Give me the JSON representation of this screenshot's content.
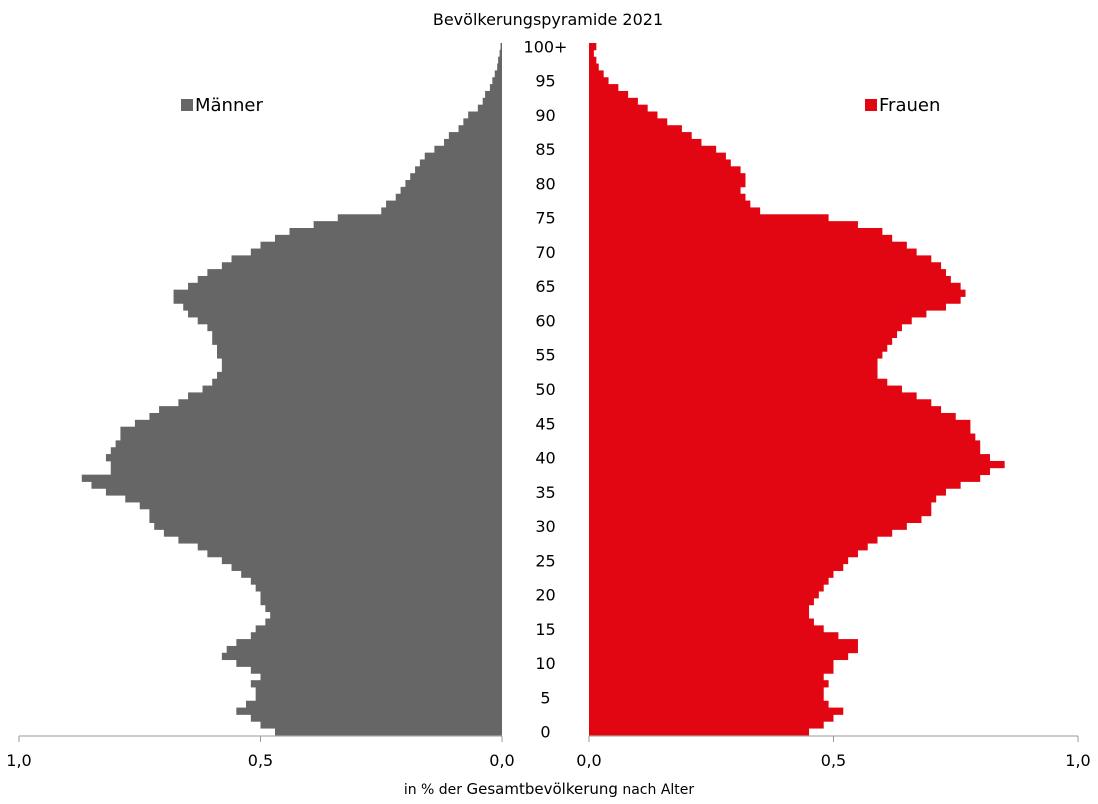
{
  "chart_data": {
    "type": "bar",
    "orientation": "horizontal-population-pyramid",
    "title": "Bevölkerungspyramide 2021",
    "xlim": [
      0,
      1.0
    ],
    "x_ticks": [
      "1,0",
      "0,5",
      "0,0",
      "0,0",
      "0,5",
      "1,0"
    ],
    "age_tick_labels": [
      "0",
      "5",
      "10",
      "15",
      "20",
      "25",
      "30",
      "35",
      "40",
      "45",
      "50",
      "55",
      "60",
      "65",
      "70",
      "75",
      "80",
      "85",
      "90",
      "95",
      "100+"
    ],
    "ages": [
      0,
      1,
      2,
      3,
      4,
      5,
      6,
      7,
      8,
      9,
      10,
      11,
      12,
      13,
      14,
      15,
      16,
      17,
      18,
      19,
      20,
      21,
      22,
      23,
      24,
      25,
      26,
      27,
      28,
      29,
      30,
      31,
      32,
      33,
      34,
      35,
      36,
      37,
      38,
      39,
      40,
      41,
      42,
      43,
      44,
      45,
      46,
      47,
      48,
      49,
      50,
      51,
      52,
      53,
      54,
      55,
      56,
      57,
      58,
      59,
      60,
      61,
      62,
      63,
      64,
      65,
      66,
      67,
      68,
      69,
      70,
      71,
      72,
      73,
      74,
      75,
      76,
      77,
      78,
      79,
      80,
      81,
      82,
      83,
      84,
      85,
      86,
      87,
      88,
      89,
      90,
      91,
      92,
      93,
      94,
      95,
      96,
      97,
      98,
      99,
      100
    ],
    "series": [
      {
        "name": "Männer",
        "color": "#666666",
        "side": "left",
        "values": [
          0.47,
          0.5,
          0.52,
          0.55,
          0.53,
          0.51,
          0.51,
          0.52,
          0.5,
          0.52,
          0.55,
          0.58,
          0.57,
          0.55,
          0.52,
          0.51,
          0.49,
          0.48,
          0.49,
          0.5,
          0.5,
          0.51,
          0.52,
          0.54,
          0.56,
          0.58,
          0.61,
          0.63,
          0.67,
          0.7,
          0.72,
          0.73,
          0.73,
          0.75,
          0.78,
          0.82,
          0.85,
          0.87,
          0.81,
          0.81,
          0.82,
          0.81,
          0.8,
          0.79,
          0.79,
          0.76,
          0.73,
          0.71,
          0.67,
          0.65,
          0.62,
          0.6,
          0.59,
          0.58,
          0.58,
          0.59,
          0.59,
          0.6,
          0.6,
          0.61,
          0.63,
          0.65,
          0.66,
          0.68,
          0.68,
          0.65,
          0.63,
          0.61,
          0.58,
          0.56,
          0.52,
          0.5,
          0.47,
          0.44,
          0.39,
          0.34,
          0.25,
          0.24,
          0.22,
          0.21,
          0.2,
          0.19,
          0.18,
          0.17,
          0.16,
          0.14,
          0.12,
          0.11,
          0.09,
          0.08,
          0.07,
          0.05,
          0.04,
          0.035,
          0.025,
          0.02,
          0.015,
          0.01,
          0.008,
          0.005,
          0.003
        ]
      },
      {
        "name": "Frauen",
        "color": "#E20613",
        "side": "right",
        "values": [
          0.45,
          0.48,
          0.5,
          0.52,
          0.49,
          0.48,
          0.48,
          0.49,
          0.48,
          0.5,
          0.5,
          0.53,
          0.55,
          0.55,
          0.51,
          0.48,
          0.46,
          0.45,
          0.45,
          0.46,
          0.47,
          0.48,
          0.49,
          0.5,
          0.52,
          0.53,
          0.55,
          0.57,
          0.59,
          0.62,
          0.65,
          0.68,
          0.7,
          0.7,
          0.71,
          0.73,
          0.76,
          0.8,
          0.82,
          0.85,
          0.82,
          0.8,
          0.8,
          0.79,
          0.78,
          0.78,
          0.75,
          0.72,
          0.7,
          0.67,
          0.64,
          0.61,
          0.59,
          0.59,
          0.59,
          0.6,
          0.61,
          0.62,
          0.63,
          0.64,
          0.66,
          0.69,
          0.73,
          0.76,
          0.77,
          0.76,
          0.74,
          0.73,
          0.72,
          0.7,
          0.67,
          0.65,
          0.62,
          0.6,
          0.55,
          0.49,
          0.35,
          0.33,
          0.32,
          0.31,
          0.32,
          0.32,
          0.31,
          0.29,
          0.28,
          0.26,
          0.23,
          0.21,
          0.19,
          0.16,
          0.14,
          0.12,
          0.1,
          0.08,
          0.06,
          0.04,
          0.03,
          0.02,
          0.015,
          0.01,
          0.015
        ]
      }
    ],
    "x_unit_label": {
      "prefix": "in % der",
      "emphasis": "Gesamtbevölkerung",
      "suffix": "nach Alter"
    }
  }
}
